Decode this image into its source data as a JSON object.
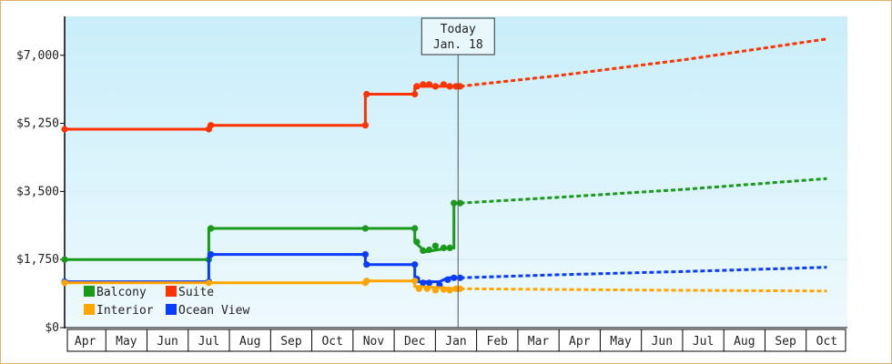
{
  "chart_data": {
    "type": "line",
    "title": "",
    "xlabel": "",
    "ylabel": "",
    "x_tick_labels": [
      "Apr",
      "May",
      "Jun",
      "Jul",
      "Aug",
      "Sep",
      "Oct",
      "Nov",
      "Dec",
      "Jan",
      "Feb",
      "Mar",
      "Apr",
      "May",
      "Jun",
      "Jul",
      "Aug",
      "Sep",
      "Oct"
    ],
    "ylim": [
      0,
      8000
    ],
    "y_ticks": [
      0,
      1750,
      3500,
      5250,
      7000
    ],
    "y_tick_labels": [
      "$0",
      "$1,750",
      "$3,500",
      "$5,250",
      "$7,000"
    ],
    "today_marker": {
      "line1": "Today",
      "line2": "Jan. 18",
      "x": 9.55
    },
    "legend": {
      "placement": "bottom-left",
      "items": [
        {
          "label": "Balcony",
          "color": "#1a9a1a"
        },
        {
          "label": "Suite",
          "color": "#ff3300"
        },
        {
          "label": "Interior",
          "color": "#ffa500"
        },
        {
          "label": "Ocean View",
          "color": "#0a3cff"
        }
      ]
    },
    "x_unit": "month index from first Apr (0 = start of Apr)",
    "series": [
      {
        "name": "Suite",
        "color": "#ff3300",
        "history": [
          [
            0,
            5100
          ],
          [
            3.5,
            5100
          ],
          [
            3.5,
            5200
          ],
          [
            7.3,
            5200
          ],
          [
            7.3,
            6000
          ],
          [
            8.5,
            6000
          ],
          [
            8.5,
            6200
          ],
          [
            9.6,
            6200
          ]
        ],
        "markers": [
          [
            0,
            5100
          ],
          [
            3.5,
            5100
          ],
          [
            3.55,
            5200
          ],
          [
            7.3,
            5200
          ],
          [
            7.33,
            6000
          ],
          [
            8.5,
            6000
          ],
          [
            8.55,
            6200
          ],
          [
            8.7,
            6250
          ],
          [
            8.85,
            6250
          ],
          [
            9.0,
            6200
          ],
          [
            9.2,
            6250
          ],
          [
            9.35,
            6200
          ],
          [
            9.5,
            6200
          ],
          [
            9.6,
            6200
          ]
        ],
        "forecast": [
          [
            9.6,
            6200
          ],
          [
            12,
            6480
          ],
          [
            15,
            6880
          ],
          [
            18.5,
            7420
          ]
        ]
      },
      {
        "name": "Balcony",
        "color": "#1a9a1a",
        "history": [
          [
            0,
            1750
          ],
          [
            3.5,
            1750
          ],
          [
            3.5,
            2550
          ],
          [
            8.5,
            2550
          ],
          [
            8.5,
            2200
          ],
          [
            8.75,
            1950
          ],
          [
            9.35,
            2050
          ],
          [
            9.45,
            2050
          ],
          [
            9.45,
            3200
          ],
          [
            9.6,
            3200
          ]
        ],
        "markers": [
          [
            0,
            1750
          ],
          [
            3.5,
            1750
          ],
          [
            3.55,
            2550
          ],
          [
            7.3,
            2550
          ],
          [
            8.5,
            2550
          ],
          [
            8.55,
            2200
          ],
          [
            8.7,
            1980
          ],
          [
            8.85,
            2000
          ],
          [
            9.0,
            2100
          ],
          [
            9.2,
            2050
          ],
          [
            9.35,
            2050
          ],
          [
            9.45,
            3200
          ],
          [
            9.6,
            3200
          ]
        ],
        "forecast": [
          [
            9.6,
            3200
          ],
          [
            12,
            3350
          ],
          [
            15,
            3550
          ],
          [
            18.5,
            3830
          ]
        ]
      },
      {
        "name": "Ocean View",
        "color": "#0a3cff",
        "history": [
          [
            0,
            1180
          ],
          [
            3.5,
            1180
          ],
          [
            3.5,
            1880
          ],
          [
            7.3,
            1880
          ],
          [
            7.3,
            1620
          ],
          [
            8.5,
            1620
          ],
          [
            8.5,
            1180
          ],
          [
            9.1,
            1180
          ],
          [
            9.3,
            1280
          ],
          [
            9.6,
            1280
          ]
        ],
        "markers": [
          [
            0,
            1180
          ],
          [
            3.5,
            1180
          ],
          [
            3.55,
            1880
          ],
          [
            7.3,
            1880
          ],
          [
            7.33,
            1620
          ],
          [
            8.5,
            1620
          ],
          [
            8.55,
            1250
          ],
          [
            8.7,
            1150
          ],
          [
            8.85,
            1150
          ],
          [
            9.1,
            1100
          ],
          [
            9.3,
            1230
          ],
          [
            9.45,
            1280
          ],
          [
            9.6,
            1280
          ]
        ],
        "forecast": [
          [
            9.6,
            1280
          ],
          [
            12,
            1360
          ],
          [
            15,
            1440
          ],
          [
            18.5,
            1550
          ]
        ]
      },
      {
        "name": "Interior",
        "color": "#ffa500",
        "history": [
          [
            0,
            1150
          ],
          [
            7.3,
            1150
          ],
          [
            7.3,
            1200
          ],
          [
            8.5,
            1200
          ],
          [
            8.5,
            1060
          ],
          [
            9.6,
            1000
          ]
        ],
        "markers": [
          [
            0,
            1150
          ],
          [
            3.5,
            1150
          ],
          [
            7.3,
            1150
          ],
          [
            7.33,
            1200
          ],
          [
            8.5,
            1200
          ],
          [
            8.6,
            1000
          ],
          [
            8.8,
            1000
          ],
          [
            9.0,
            960
          ],
          [
            9.2,
            980
          ],
          [
            9.35,
            960
          ],
          [
            9.5,
            1000
          ],
          [
            9.6,
            1000
          ]
        ],
        "forecast": [
          [
            9.6,
            1000
          ],
          [
            12,
            980
          ],
          [
            15,
            960
          ],
          [
            18.5,
            940
          ]
        ]
      }
    ]
  }
}
